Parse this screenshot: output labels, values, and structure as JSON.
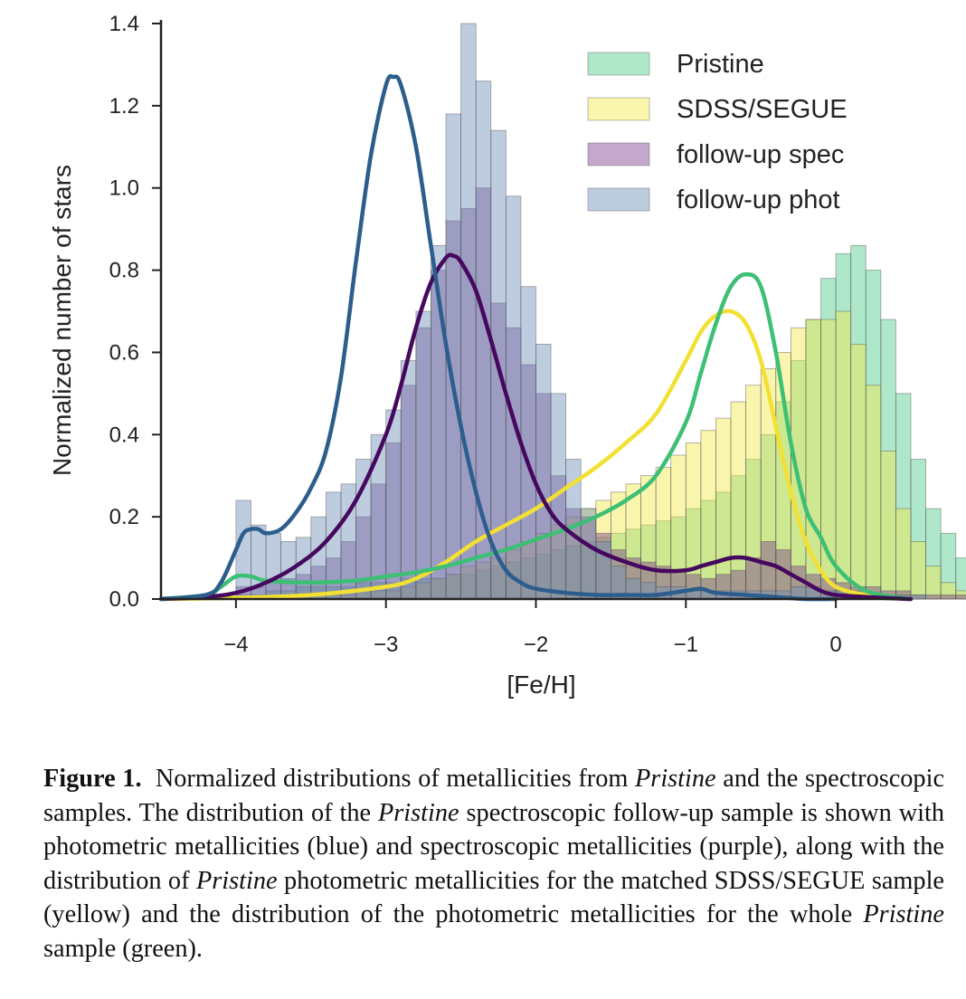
{
  "chart_data": {
    "type": "histogram",
    "xlabel": "[Fe/H]",
    "ylabel": "Normalized number of stars",
    "xlim": [
      -4.5,
      0.5
    ],
    "ylim": [
      0,
      1.4
    ],
    "x_ticks": [
      -4,
      -3,
      -2,
      -1,
      0
    ],
    "y_ticks": [
      0.0,
      0.2,
      0.4,
      0.6,
      0.8,
      1.0,
      1.2,
      1.4
    ],
    "grid": false,
    "legend_position": "top-right",
    "bin_width": 0.1,
    "bin_start": -4.0,
    "series": [
      {
        "name": "Pristine",
        "color": "#4cc98a",
        "density": [
          0.01,
          0.01,
          0.02,
          0.02,
          0.03,
          0.03,
          0.03,
          0.03,
          0.04,
          0.04,
          0.04,
          0.05,
          0.05,
          0.05,
          0.06,
          0.06,
          0.07,
          0.08,
          0.09,
          0.1,
          0.11,
          0.12,
          0.13,
          0.14,
          0.15,
          0.16,
          0.17,
          0.18,
          0.19,
          0.2,
          0.22,
          0.24,
          0.26,
          0.3,
          0.34,
          0.4,
          0.48,
          0.58,
          0.68,
          0.78,
          0.84,
          0.86,
          0.8,
          0.68,
          0.5,
          0.34,
          0.22,
          0.16,
          0.1,
          0.06
        ],
        "kde_x": [
          -4.5,
          -4.2,
          -4.1,
          -4.0,
          -3.9,
          -3.8,
          -3.5,
          -3.2,
          -3.0,
          -2.8,
          -2.6,
          -2.4,
          -2.2,
          -2.0,
          -1.8,
          -1.6,
          -1.4,
          -1.2,
          -1.0,
          -0.9,
          -0.8,
          -0.7,
          -0.6,
          -0.5,
          -0.4,
          -0.3,
          -0.2,
          -0.1,
          0.0,
          0.2,
          0.5
        ],
        "kde_y": [
          0.0,
          0.01,
          0.03,
          0.055,
          0.055,
          0.045,
          0.04,
          0.045,
          0.055,
          0.065,
          0.08,
          0.1,
          0.12,
          0.145,
          0.17,
          0.2,
          0.24,
          0.3,
          0.43,
          0.55,
          0.67,
          0.76,
          0.79,
          0.76,
          0.6,
          0.38,
          0.22,
          0.15,
          0.08,
          0.02,
          0.0
        ]
      },
      {
        "name": "SDSS/SEGUE",
        "color": "#f3e84a",
        "density": [
          0.0,
          0.0,
          0.0,
          0.0,
          0.0,
          0.01,
          0.01,
          0.01,
          0.02,
          0.02,
          0.02,
          0.03,
          0.04,
          0.05,
          0.06,
          0.08,
          0.09,
          0.1,
          0.12,
          0.14,
          0.16,
          0.18,
          0.2,
          0.22,
          0.24,
          0.26,
          0.28,
          0.3,
          0.32,
          0.35,
          0.38,
          0.41,
          0.44,
          0.48,
          0.52,
          0.56,
          0.6,
          0.66,
          0.68,
          0.68,
          0.7,
          0.62,
          0.52,
          0.36,
          0.22,
          0.14,
          0.08,
          0.04,
          0.02,
          0.01
        ],
        "kde_x": [
          -4.5,
          -4.0,
          -3.5,
          -3.0,
          -2.8,
          -2.6,
          -2.4,
          -2.2,
          -2.0,
          -1.8,
          -1.6,
          -1.4,
          -1.2,
          -1.0,
          -0.9,
          -0.8,
          -0.7,
          -0.6,
          -0.5,
          -0.4,
          -0.3,
          -0.2,
          -0.1,
          0.0,
          0.2,
          0.5
        ],
        "kde_y": [
          0.0,
          0.003,
          0.01,
          0.03,
          0.05,
          0.09,
          0.14,
          0.18,
          0.22,
          0.27,
          0.32,
          0.38,
          0.45,
          0.58,
          0.65,
          0.69,
          0.7,
          0.67,
          0.58,
          0.42,
          0.26,
          0.14,
          0.07,
          0.03,
          0.01,
          0.0
        ]
      },
      {
        "name": "follow-up spec",
        "color": "#7b3f8c",
        "density": [
          0.03,
          0.03,
          0.04,
          0.05,
          0.06,
          0.08,
          0.1,
          0.14,
          0.2,
          0.28,
          0.38,
          0.52,
          0.66,
          0.8,
          0.92,
          0.95,
          1.0,
          0.72,
          0.66,
          0.57,
          0.5,
          0.3,
          0.22,
          0.2,
          0.16,
          0.12,
          0.1,
          0.09,
          0.08,
          0.07,
          0.06,
          0.05,
          0.06,
          0.07,
          0.1,
          0.14,
          0.12,
          0.08,
          0.06,
          0.05,
          0.04,
          0.03,
          0.03,
          0.02,
          0.02,
          0.01,
          0.01,
          0.01,
          0.01,
          0.03
        ],
        "kde_x": [
          -4.5,
          -4.2,
          -4.0,
          -3.8,
          -3.6,
          -3.4,
          -3.2,
          -3.0,
          -2.9,
          -2.8,
          -2.7,
          -2.6,
          -2.55,
          -2.5,
          -2.4,
          -2.3,
          -2.2,
          -2.1,
          -2.0,
          -1.9,
          -1.8,
          -1.6,
          -1.4,
          -1.2,
          -1.0,
          -0.9,
          -0.8,
          -0.7,
          -0.6,
          -0.5,
          -0.4,
          -0.3,
          -0.2,
          -0.1,
          0.0,
          0.2,
          0.5
        ],
        "kde_y": [
          0.0,
          0.005,
          0.015,
          0.04,
          0.08,
          0.14,
          0.24,
          0.4,
          0.52,
          0.66,
          0.77,
          0.83,
          0.835,
          0.82,
          0.75,
          0.63,
          0.5,
          0.38,
          0.28,
          0.21,
          0.17,
          0.12,
          0.09,
          0.07,
          0.07,
          0.08,
          0.09,
          0.1,
          0.1,
          0.09,
          0.08,
          0.06,
          0.04,
          0.02,
          0.01,
          0.005,
          0.0
        ]
      },
      {
        "name": "follow-up phot",
        "color": "#6f8fb8",
        "density": [
          0.24,
          0.18,
          0.16,
          0.14,
          0.15,
          0.2,
          0.26,
          0.28,
          0.34,
          0.4,
          0.46,
          0.58,
          0.7,
          0.86,
          1.18,
          1.4,
          1.26,
          1.14,
          0.98,
          0.76,
          0.62,
          0.5,
          0.34,
          0.22,
          0.14,
          0.08,
          0.05,
          0.04,
          0.03,
          0.03,
          0.02,
          0.02,
          0.02,
          0.02,
          0.02,
          0.02,
          0.02,
          0.03,
          0.03,
          0.02,
          0.02,
          0.02,
          0.01,
          0.01,
          0.01,
          0.01,
          0.0,
          0.0,
          0.0,
          0.0
        ],
        "kde_x": [
          -4.5,
          -4.2,
          -4.1,
          -4.0,
          -3.95,
          -3.9,
          -3.85,
          -3.8,
          -3.7,
          -3.6,
          -3.5,
          -3.4,
          -3.3,
          -3.2,
          -3.1,
          -3.0,
          -2.95,
          -2.9,
          -2.8,
          -2.7,
          -2.6,
          -2.5,
          -2.4,
          -2.3,
          -2.2,
          -2.1,
          -2.0,
          -1.8,
          -1.6,
          -1.4,
          -1.2,
          -1.0,
          -0.9,
          -0.8,
          -0.6,
          -0.4,
          -0.2,
          0.0
        ],
        "kde_y": [
          0.0,
          0.01,
          0.04,
          0.12,
          0.16,
          0.17,
          0.17,
          0.16,
          0.17,
          0.21,
          0.27,
          0.36,
          0.54,
          0.82,
          1.08,
          1.25,
          1.27,
          1.25,
          1.1,
          0.86,
          0.62,
          0.42,
          0.26,
          0.14,
          0.07,
          0.04,
          0.025,
          0.015,
          0.01,
          0.01,
          0.01,
          0.02,
          0.025,
          0.015,
          0.01,
          0.005,
          0.0,
          0.0
        ]
      }
    ]
  },
  "caption": {
    "label": "Figure 1.",
    "segments": [
      {
        "text": "Normalized distributions of metallicities from ",
        "italic": false
      },
      {
        "text": "Pristine",
        "italic": true
      },
      {
        "text": " and the spectroscopic samples. The distribution of the ",
        "italic": false
      },
      {
        "text": "Pristine",
        "italic": true
      },
      {
        "text": " spectroscopic follow-up sample is shown with photometric metallicities (blue) and spectroscopic metallicities (purple), along with the distribution of ",
        "italic": false
      },
      {
        "text": "Pristine",
        "italic": true
      },
      {
        "text": " photometric metallicities for the matched SDSS/SEGUE sample (yellow) and the distribution of the photometric metallicities for the whole ",
        "italic": false
      },
      {
        "text": "Pristine",
        "italic": true
      },
      {
        "text": " sample (green).",
        "italic": false
      }
    ]
  }
}
